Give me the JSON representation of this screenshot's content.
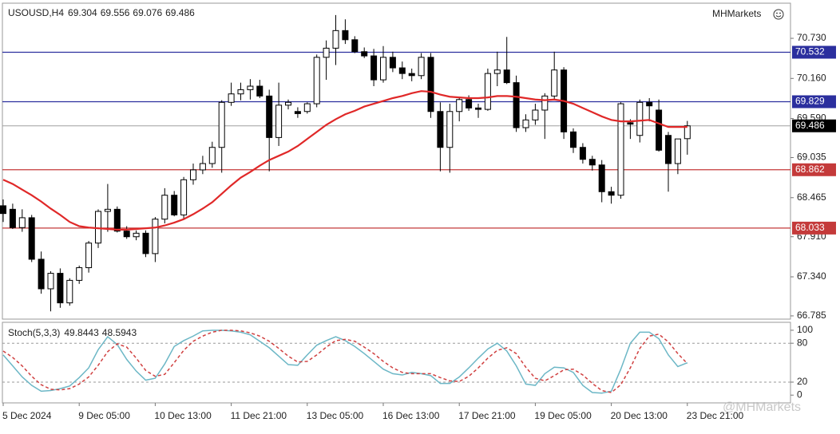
{
  "chart_data": {
    "type": "candlestick",
    "symbol": "USOUSD,H4",
    "logo": "MHMarkets",
    "watermark": "@MHMarkets",
    "categories": [
      "5 Dec 2024",
      null,
      null,
      null,
      null,
      null,
      null,
      null,
      "9 Dec 05:00",
      null,
      null,
      null,
      null,
      null,
      null,
      null,
      "10 Dec 13:00",
      null,
      null,
      null,
      null,
      null,
      null,
      null,
      "11 Dec 21:00",
      null,
      null,
      null,
      null,
      null,
      null,
      null,
      "13 Dec 05:00",
      null,
      null,
      null,
      null,
      null,
      null,
      null,
      "16 Dec 13:00",
      null,
      null,
      null,
      null,
      null,
      null,
      null,
      "17 Dec 21:00",
      null,
      null,
      null,
      null,
      null,
      null,
      null,
      "19 Dec 05:00",
      null,
      null,
      null,
      null,
      null,
      null,
      null,
      "20 Dec 13:00",
      null,
      null,
      null,
      null,
      null,
      null,
      null,
      "23 Dec 21:00"
    ],
    "candles": [
      [
        68.35,
        68.44,
        68.12,
        68.24
      ],
      [
        68.3,
        68.38,
        68.02,
        68.04
      ],
      [
        68.04,
        68.3,
        67.98,
        68.18
      ],
      [
        68.18,
        68.22,
        67.55,
        67.59
      ],
      [
        67.59,
        67.7,
        67.1,
        67.17
      ],
      [
        67.17,
        67.42,
        66.85,
        67.39
      ],
      [
        67.39,
        67.46,
        66.9,
        66.97
      ],
      [
        66.97,
        67.32,
        66.93,
        67.29
      ],
      [
        67.29,
        67.5,
        67.24,
        67.47
      ],
      [
        67.47,
        67.85,
        67.4,
        67.82
      ],
      [
        67.82,
        68.3,
        67.75,
        68.27
      ],
      [
        68.27,
        68.66,
        67.98,
        68.3
      ],
      [
        68.3,
        68.34,
        67.97,
        67.99
      ],
      [
        67.99,
        68.06,
        67.88,
        67.91
      ],
      [
        67.91,
        68.0,
        67.86,
        67.96
      ],
      [
        67.96,
        68.0,
        67.62,
        67.67
      ],
      [
        67.67,
        68.19,
        67.55,
        68.16
      ],
      [
        68.16,
        68.6,
        68.1,
        68.5
      ],
      [
        68.5,
        68.56,
        68.2,
        68.22
      ],
      [
        68.22,
        68.76,
        68.15,
        68.72
      ],
      [
        68.72,
        68.95,
        68.65,
        68.86
      ],
      [
        68.86,
        69.06,
        68.8,
        68.95
      ],
      [
        68.95,
        69.26,
        68.89,
        69.18
      ],
      [
        69.18,
        69.85,
        68.82,
        69.82
      ],
      [
        69.82,
        70.1,
        69.77,
        69.94
      ],
      [
        69.94,
        70.1,
        69.85,
        70.0
      ],
      [
        70.0,
        70.15,
        69.86,
        70.05
      ],
      [
        70.05,
        70.14,
        69.88,
        69.91
      ],
      [
        69.91,
        70.0,
        68.84,
        69.32
      ],
      [
        69.32,
        70.1,
        69.2,
        69.78
      ],
      [
        69.78,
        69.86,
        69.72,
        69.82
      ],
      [
        69.69,
        69.75,
        69.6,
        69.66
      ],
      [
        69.69,
        69.82,
        69.66,
        69.8
      ],
      [
        69.8,
        70.5,
        69.75,
        70.46
      ],
      [
        70.46,
        70.7,
        70.14,
        70.59
      ],
      [
        70.59,
        71.06,
        70.35,
        70.84
      ],
      [
        70.84,
        71.0,
        70.65,
        70.71
      ],
      [
        70.71,
        70.76,
        70.52,
        70.54
      ],
      [
        70.54,
        70.6,
        70.45,
        70.48
      ],
      [
        70.48,
        70.58,
        70.05,
        70.14
      ],
      [
        70.14,
        70.62,
        70.1,
        70.46
      ],
      [
        70.46,
        70.54,
        70.25,
        70.31
      ],
      [
        70.31,
        70.4,
        70.15,
        70.23
      ],
      [
        70.23,
        70.3,
        70.12,
        70.2
      ],
      [
        70.2,
        70.52,
        70.15,
        70.46
      ],
      [
        70.46,
        70.52,
        69.6,
        69.69
      ],
      [
        69.69,
        69.82,
        68.84,
        69.18
      ],
      [
        69.18,
        69.8,
        68.82,
        69.69
      ],
      [
        69.69,
        69.9,
        69.55,
        69.86
      ],
      [
        69.86,
        69.92,
        69.7,
        69.74
      ],
      [
        69.74,
        69.8,
        69.6,
        69.72
      ],
      [
        69.72,
        70.3,
        69.7,
        70.23
      ],
      [
        70.23,
        70.54,
        70.05,
        70.28
      ],
      [
        70.28,
        70.75,
        70.08,
        70.1
      ],
      [
        70.1,
        70.2,
        69.4,
        69.46
      ],
      [
        69.46,
        69.65,
        69.4,
        69.57
      ],
      [
        69.57,
        69.8,
        69.5,
        69.71
      ],
      [
        69.71,
        69.95,
        69.3,
        69.91
      ],
      [
        69.91,
        70.54,
        69.85,
        70.28
      ],
      [
        70.28,
        70.32,
        69.3,
        69.4
      ],
      [
        69.4,
        69.45,
        69.1,
        69.18
      ],
      [
        69.18,
        69.24,
        68.95,
        69.01
      ],
      [
        69.01,
        69.06,
        68.85,
        68.93
      ],
      [
        68.93,
        69.0,
        68.4,
        68.55
      ],
      [
        68.55,
        68.62,
        68.38,
        68.5
      ],
      [
        68.5,
        69.82,
        68.45,
        69.8
      ],
      [
        69.53,
        69.58,
        69.3,
        69.51
      ],
      [
        69.35,
        69.86,
        69.25,
        69.82
      ],
      [
        69.82,
        69.88,
        69.55,
        69.77
      ],
      [
        69.71,
        69.86,
        69.12,
        69.14
      ],
      [
        69.35,
        69.4,
        68.55,
        68.95
      ],
      [
        68.95,
        69.3,
        68.8,
        69.3
      ],
      [
        69.304,
        69.556,
        69.076,
        69.486
      ]
    ],
    "up_color": "#ffffff",
    "down_color": "#000000",
    "last_price_color": "#a0a0a0",
    "ma": {
      "color": "#e02828",
      "values": [
        68.72,
        68.66,
        68.58,
        68.5,
        68.41,
        68.31,
        68.22,
        68.12,
        68.06,
        68.04,
        68.03,
        68.02,
        68.01,
        68.01,
        68.02,
        68.03,
        68.04,
        68.07,
        68.11,
        68.16,
        68.23,
        68.31,
        68.4,
        68.52,
        68.64,
        68.75,
        68.83,
        68.92,
        69.0,
        69.06,
        69.12,
        69.2,
        69.3,
        69.4,
        69.5,
        69.58,
        69.65,
        69.7,
        69.76,
        69.8,
        69.84,
        69.88,
        69.91,
        69.95,
        69.98,
        69.97,
        69.93,
        69.9,
        69.89,
        69.88,
        69.88,
        69.89,
        69.91,
        69.91,
        69.9,
        69.88,
        69.86,
        69.85,
        69.86,
        69.84,
        69.8,
        69.74,
        69.68,
        69.62,
        69.57,
        69.55,
        69.55,
        69.56,
        69.57,
        69.52,
        69.47,
        69.47,
        69.47
      ]
    },
    "levels": [
      {
        "value": 70.532,
        "color": "#2b2f9e"
      },
      {
        "value": 69.829,
        "color": "#2b2f9e"
      },
      {
        "value": 68.862,
        "color": "#c43a3a"
      },
      {
        "value": 68.033,
        "color": "#c43a3a"
      }
    ],
    "ylim": [
      66.739,
      71.218
    ],
    "yticks": [
      {
        "value": 70.73,
        "label": "70.730"
      },
      {
        "value": 70.16,
        "label": "70.160"
      },
      {
        "value": 69.59,
        "label": "69.590"
      },
      69.035,
      68.465,
      {
        "value": 67.91,
        "label": "67.910"
      },
      {
        "value": 67.34,
        "label": "67.340"
      },
      66.785
    ],
    "stoch": {
      "name": "Stoch(5,3,3)",
      "series": [
        {
          "color": "#6cb7c6",
          "values": [
            62,
            45,
            28,
            15,
            6,
            7,
            10,
            14,
            27,
            42,
            70,
            90,
            78,
            55,
            37,
            23,
            26,
            48,
            75,
            84,
            91,
            99,
            100,
            100,
            99,
            97,
            93,
            83,
            73,
            60,
            47,
            46,
            62,
            77,
            84,
            90,
            84,
            75,
            64,
            52,
            40,
            33,
            31,
            35,
            33,
            30,
            18,
            18,
            28,
            42,
            57,
            71,
            80,
            68,
            45,
            17,
            15,
            33,
            43,
            42,
            35,
            15,
            4,
            3,
            6,
            40,
            80,
            97,
            97,
            87,
            62,
            44,
            49.8443
          ]
        },
        {
          "color": "#d04040",
          "dashed": true,
          "values": [
            68,
            58,
            45,
            29,
            16,
            9,
            8,
            10,
            17,
            28,
            46,
            67,
            79,
            74,
            57,
            38,
            29,
            32,
            50,
            69,
            83,
            91,
            97,
            100,
            100,
            99,
            96,
            91,
            83,
            72,
            60,
            51,
            52,
            62,
            74,
            84,
            86,
            83,
            74,
            64,
            52,
            42,
            35,
            33,
            33,
            33,
            27,
            22,
            21,
            29,
            42,
            57,
            69,
            73,
            64,
            43,
            26,
            22,
            30,
            39,
            40,
            31,
            18,
            7,
            4,
            16,
            42,
            72,
            91,
            94,
            82,
            64,
            48.5943
          ]
        }
      ],
      "ylim": [
        -12,
        111
      ],
      "yticks": [
        100,
        80,
        20,
        0
      ],
      "levels": [
        80,
        20
      ]
    }
  }
}
